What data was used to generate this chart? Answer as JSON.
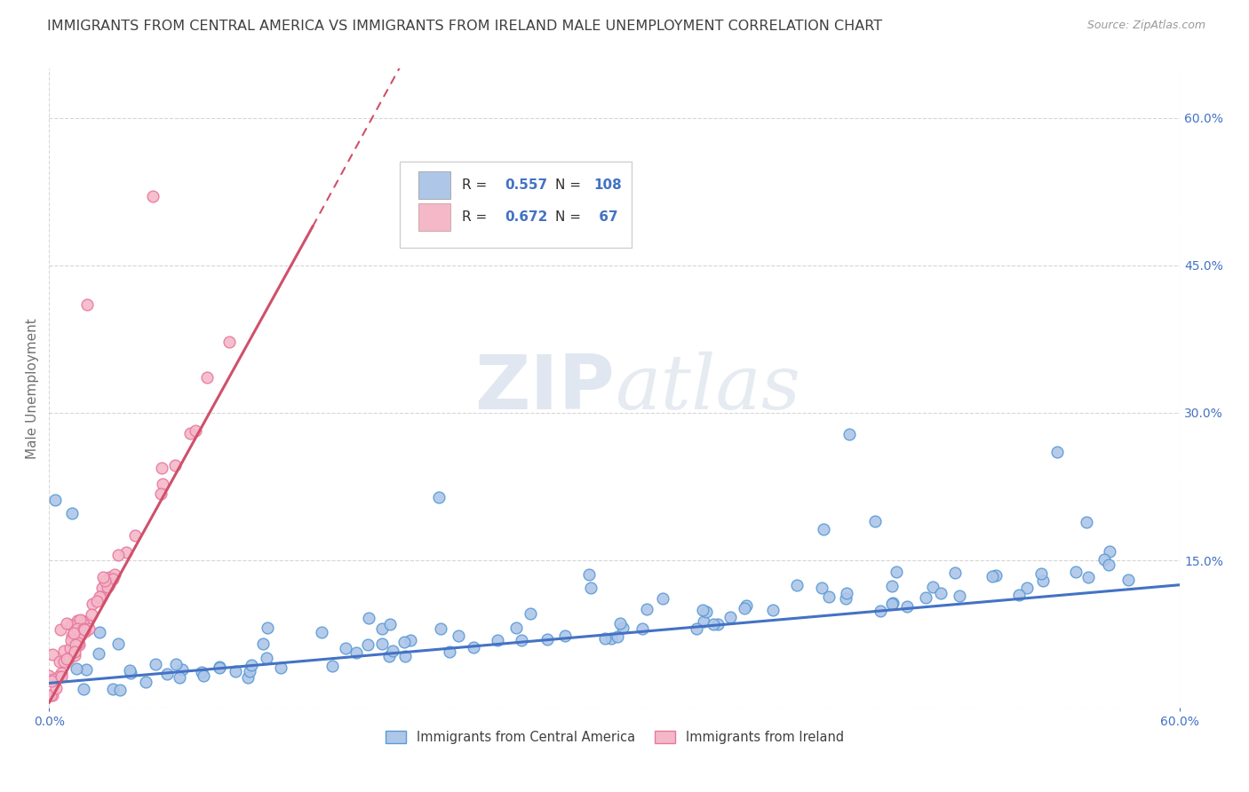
{
  "title": "IMMIGRANTS FROM CENTRAL AMERICA VS IMMIGRANTS FROM IRELAND MALE UNEMPLOYMENT CORRELATION CHART",
  "source": "Source: ZipAtlas.com",
  "ylabel": "Male Unemployment",
  "xlim": [
    0,
    0.6
  ],
  "ylim": [
    0,
    0.65
  ],
  "series1_label": "Immigrants from Central America",
  "series2_label": "Immigrants from Ireland",
  "series1_color": "#aec6e8",
  "series2_color": "#f4b8c8",
  "series1_edge": "#5b9bd5",
  "series2_edge": "#e878a0",
  "series1_line_color": "#4472c4",
  "series2_line_color": "#d0506a",
  "R1": "0.557",
  "N1": "108",
  "R2": "0.672",
  "N2": " 67",
  "watermark_zip": "ZIP",
  "watermark_atlas": "atlas",
  "background_color": "#ffffff",
  "grid_color": "#cccccc",
  "title_color": "#404040",
  "title_fontsize": 11.5,
  "axis_label_color": "#707070",
  "tick_color": "#4472c4",
  "legend_border_color": "#d0d0d0",
  "seed1": 42,
  "seed2": 7
}
